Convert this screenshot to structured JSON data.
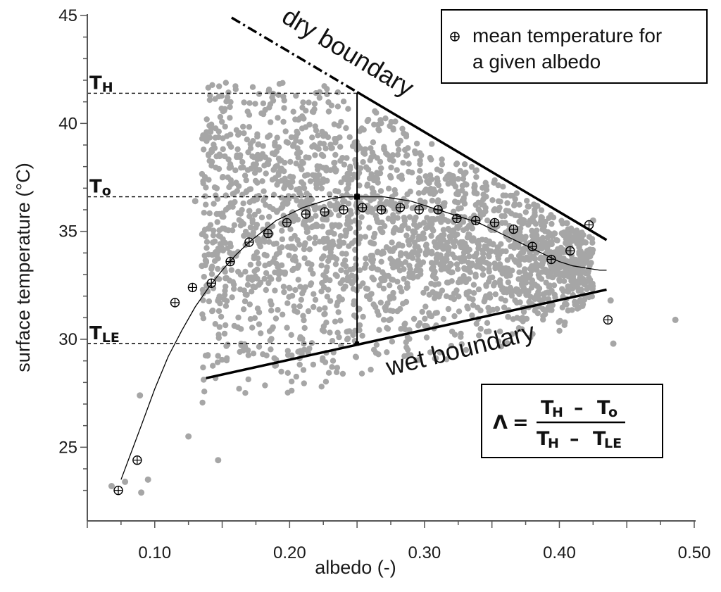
{
  "chart_data": {
    "type": "scatter",
    "xlabel": "albedo (-)",
    "ylabel": "surface temperature (°C)",
    "xlim": [
      0.05,
      0.5
    ],
    "ylim": [
      22.5,
      45
    ],
    "xticks": [
      "0.10",
      "0.20",
      "0.30",
      "0.40",
      "0.50"
    ],
    "xtick_values": [
      0.1,
      0.2,
      0.3,
      0.4,
      0.5
    ],
    "yticks": [
      "25",
      "30",
      "35",
      "40",
      "45"
    ],
    "ytick_values": [
      25,
      30,
      35,
      40,
      45
    ],
    "grid": false,
    "legend_position": "top-right",
    "colors": {
      "scatter": "#a6a6a6",
      "lines": "#000000"
    },
    "series": [
      {
        "name": "mean temperature for a given albedo",
        "marker": "circle-plus",
        "x": [
          0.073,
          0.087,
          0.115,
          0.128,
          0.142,
          0.156,
          0.17,
          0.184,
          0.198,
          0.212,
          0.226,
          0.24,
          0.254,
          0.268,
          0.282,
          0.296,
          0.31,
          0.324,
          0.338,
          0.352,
          0.366,
          0.38,
          0.394,
          0.408,
          0.422,
          0.436
        ],
        "y": [
          23.0,
          24.4,
          31.7,
          32.4,
          32.6,
          33.6,
          34.5,
          34.9,
          35.4,
          35.8,
          35.9,
          36.0,
          36.1,
          36.0,
          36.1,
          36.0,
          36.0,
          35.6,
          35.5,
          35.4,
          35.1,
          34.3,
          33.7,
          34.1,
          35.3,
          30.9
        ]
      }
    ],
    "scatter_cloud": {
      "description": "albedo / surface temperature point cloud",
      "outliers": [
        {
          "x": 0.068,
          "y": 23.2
        },
        {
          "x": 0.078,
          "y": 23.4
        },
        {
          "x": 0.09,
          "y": 22.9
        },
        {
          "x": 0.095,
          "y": 23.5
        },
        {
          "x": 0.089,
          "y": 27.4
        },
        {
          "x": 0.125,
          "y": 25.5
        },
        {
          "x": 0.147,
          "y": 24.4
        },
        {
          "x": 0.486,
          "y": 30.9
        },
        {
          "x": 0.44,
          "y": 29.8
        },
        {
          "x": 0.438,
          "y": 31.8
        },
        {
          "x": 0.425,
          "y": 35.5
        },
        {
          "x": 0.41,
          "y": 34.6
        },
        {
          "x": 0.13,
          "y": 36.4
        },
        {
          "x": 0.135,
          "y": 33.4
        }
      ]
    },
    "fit_curve": {
      "x": [
        0.075,
        0.09,
        0.1,
        0.11,
        0.12,
        0.13,
        0.14,
        0.15,
        0.16,
        0.17,
        0.18,
        0.19,
        0.2,
        0.21,
        0.22,
        0.23,
        0.24,
        0.25,
        0.26,
        0.27,
        0.28,
        0.29,
        0.3,
        0.31,
        0.32,
        0.33,
        0.34,
        0.35,
        0.36,
        0.37,
        0.38,
        0.39,
        0.4,
        0.41,
        0.42,
        0.43,
        0.435
      ],
      "y": [
        23.5,
        26.0,
        27.7,
        29.2,
        30.4,
        31.5,
        32.4,
        33.2,
        33.9,
        34.5,
        35.0,
        35.5,
        35.8,
        36.1,
        36.3,
        36.5,
        36.6,
        36.6,
        36.6,
        36.6,
        36.5,
        36.4,
        36.2,
        36.0,
        35.8,
        35.6,
        35.4,
        35.1,
        34.8,
        34.5,
        34.2,
        33.9,
        33.6,
        33.4,
        33.3,
        33.2,
        33.2
      ]
    },
    "dry_boundary": {
      "x": [
        0.157,
        0.435
      ],
      "y": [
        44.9,
        34.6
      ],
      "dashed_until_x": 0.25
    },
    "wet_boundary": {
      "x": [
        0.138,
        0.435
      ],
      "y": [
        28.2,
        32.3
      ]
    },
    "reference_x": 0.25,
    "reference_levels": [
      {
        "main": "T",
        "sub": "H",
        "y": 41.4
      },
      {
        "main": "T",
        "sub": "o",
        "y": 36.6
      },
      {
        "main": "T",
        "sub": "LE",
        "y": 29.8
      }
    ],
    "annotations": {
      "dry_boundary_label": "dry boundary",
      "wet_boundary_label": "wet boundary"
    },
    "legend": {
      "line1": "mean temperature for",
      "line2": "a given albedo"
    },
    "formula": {
      "lambda": "Λ",
      "equals": "=",
      "num_t1": "T",
      "num_s1": "H",
      "num_op": "–",
      "num_t2": "T",
      "num_s2": "o",
      "den_t1": "T",
      "den_s1": "H",
      "den_op": "–",
      "den_t2": "T",
      "den_s2": "LE"
    }
  }
}
